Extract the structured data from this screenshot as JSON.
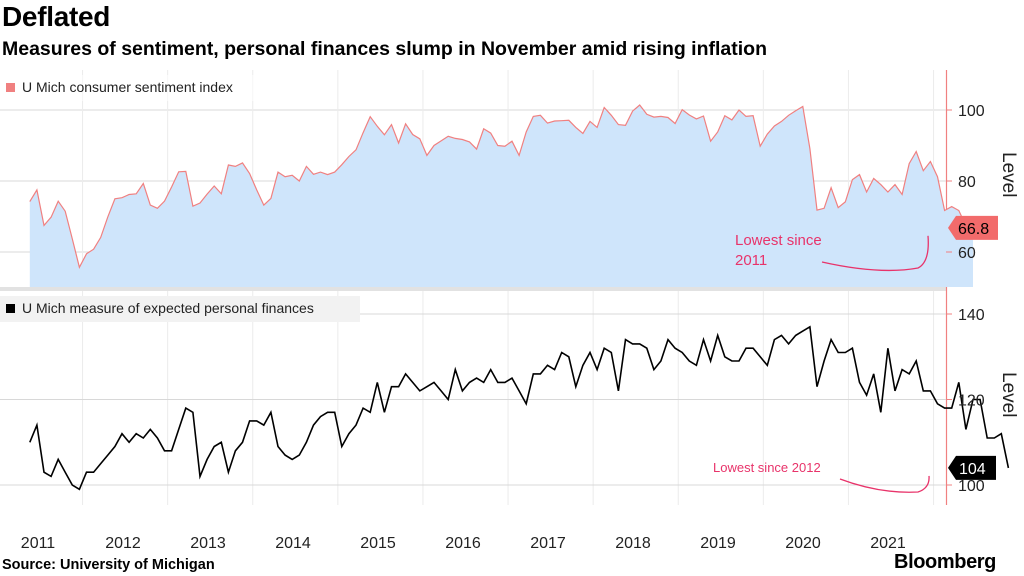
{
  "header": {
    "title": "Deflated",
    "subtitle": "Measures of sentiment, personal finances slump in November amid rising inflation"
  },
  "footer": {
    "source": "Source: University of Michigan",
    "brand": "Bloomberg"
  },
  "colors": {
    "sentiment_line": "#f08080",
    "sentiment_fill": "#cfe5fb",
    "finances_line": "#000000",
    "highlight_red": "#e8336a",
    "badge_red": "#f26b6b",
    "axis": "#f08080",
    "grid": "#d8d8d8"
  },
  "chart_data": [
    {
      "type": "area",
      "legend": "U Mich consumer sentiment index",
      "ylabel": "Level",
      "ylim": [
        48,
        112
      ],
      "yticks": [
        60,
        80,
        100
      ],
      "xlim": [
        2010.5,
        2022.0
      ],
      "x_ticks": [
        "2011",
        "2012",
        "2013",
        "2014",
        "2015",
        "2016",
        "2017",
        "2018",
        "2019",
        "2020",
        "2021"
      ],
      "last_value_label": "66.8",
      "annotation": "Lowest since\n2011",
      "grid": true,
      "series": [
        {
          "name": "U Mich consumer sentiment index",
          "x_start": "2011-01",
          "frequency": "monthly",
          "values": [
            74.2,
            77.5,
            67.5,
            69.8,
            74.3,
            71.5,
            63.7,
            55.7,
            59.5,
            60.8,
            64.1,
            69.9,
            75.0,
            75.3,
            76.2,
            76.4,
            79.3,
            73.2,
            72.3,
            74.3,
            78.3,
            82.6,
            82.7,
            72.9,
            73.8,
            76.3,
            78.6,
            76.4,
            84.5,
            84.1,
            85.1,
            82.1,
            77.5,
            73.2,
            75.1,
            82.5,
            81.2,
            81.6,
            80.0,
            84.1,
            81.9,
            82.5,
            81.8,
            82.5,
            84.6,
            86.9,
            88.8,
            93.6,
            98.1,
            95.4,
            93.0,
            95.9,
            90.7,
            96.1,
            93.1,
            91.9,
            87.2,
            90.0,
            91.3,
            92.6,
            92.0,
            91.7,
            91.0,
            89.0,
            94.7,
            93.5,
            90.0,
            89.8,
            91.2,
            87.2,
            93.8,
            98.2,
            98.5,
            96.3,
            96.9,
            97.0,
            97.1,
            95.1,
            93.4,
            96.8,
            95.1,
            100.7,
            98.5,
            95.9,
            95.7,
            99.7,
            101.4,
            98.8,
            98.0,
            98.2,
            97.9,
            96.2,
            100.1,
            98.6,
            97.5,
            98.3,
            91.2,
            93.8,
            98.4,
            97.2,
            100.0,
            98.2,
            98.4,
            89.8,
            93.2,
            95.5,
            96.8,
            98.5,
            99.8,
            101.0,
            89.1,
            71.8,
            72.3,
            78.1,
            72.5,
            74.1,
            80.4,
            81.8,
            76.9,
            80.7,
            79.0,
            76.9,
            79.0,
            76.2,
            84.9,
            88.3,
            82.9,
            85.5,
            81.2,
            71.7,
            72.8,
            71.7,
            67.4,
            66.8
          ]
        }
      ]
    },
    {
      "type": "line",
      "legend": "U Mich measure of expected personal finances",
      "ylabel": "Level",
      "ylim": [
        95,
        144
      ],
      "yticks": [
        100,
        120,
        140
      ],
      "xlim": [
        2010.5,
        2022.0
      ],
      "last_value_label": "104",
      "annotation": "Lowest since 2012",
      "grid": true,
      "series": [
        {
          "name": "U Mich measure of expected personal finances",
          "x_start": "2011-01",
          "frequency": "monthly",
          "values": [
            110,
            114,
            103,
            102,
            106,
            103,
            100,
            99,
            103,
            103,
            105,
            107,
            109,
            112,
            110,
            112,
            111,
            113,
            111,
            108,
            108,
            113,
            118,
            117,
            102,
            106,
            109,
            110,
            103,
            108,
            110,
            115,
            115,
            114,
            117,
            109,
            107,
            106,
            107,
            110,
            114,
            116,
            117,
            117,
            109,
            112,
            114,
            118,
            117,
            124,
            117,
            123,
            123,
            126,
            124,
            122,
            123,
            124,
            122,
            120,
            127,
            122,
            124,
            125,
            124,
            127,
            124,
            124,
            125,
            122,
            119,
            126,
            126,
            128,
            127,
            131,
            130,
            123,
            128,
            131,
            127,
            132,
            131,
            122,
            134,
            133,
            133,
            132,
            127,
            129,
            134,
            132,
            131,
            129,
            128,
            134,
            129,
            135,
            130,
            129,
            129,
            132,
            132,
            130,
            128,
            134,
            135,
            133,
            135,
            136,
            137,
            123,
            129,
            134,
            131,
            131,
            132,
            124,
            121,
            126,
            117,
            132,
            122,
            127,
            126,
            129,
            122,
            122,
            119,
            118,
            118,
            124,
            113,
            120,
            120,
            111,
            111,
            112,
            104
          ]
        }
      ]
    }
  ]
}
